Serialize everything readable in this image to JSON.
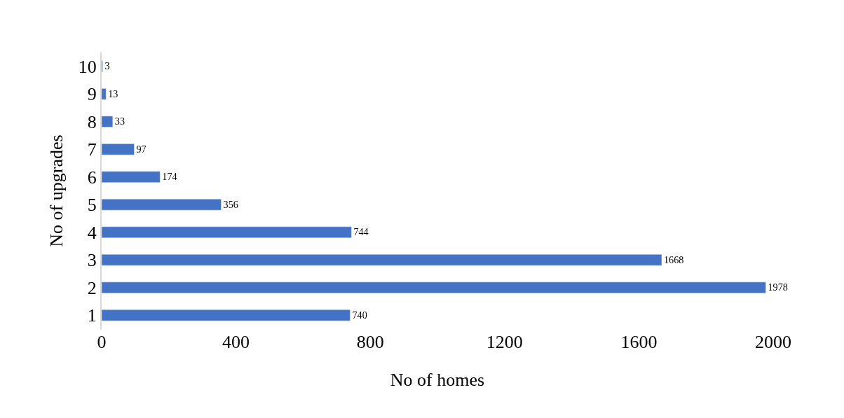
{
  "chart_data": {
    "type": "bar",
    "orientation": "horizontal",
    "xlabel": "No of homes",
    "ylabel": "No of upgrades",
    "categories": [
      "10",
      "9",
      "8",
      "7",
      "6",
      "5",
      "4",
      "3",
      "2",
      "1"
    ],
    "values": [
      3,
      13,
      33,
      97,
      174,
      356,
      744,
      1668,
      1978,
      740
    ],
    "color": "#4472c4",
    "xlim": [
      0,
      2000
    ],
    "xticks": [
      0,
      400,
      800,
      1200,
      1600,
      2000
    ],
    "data_labels": true
  }
}
